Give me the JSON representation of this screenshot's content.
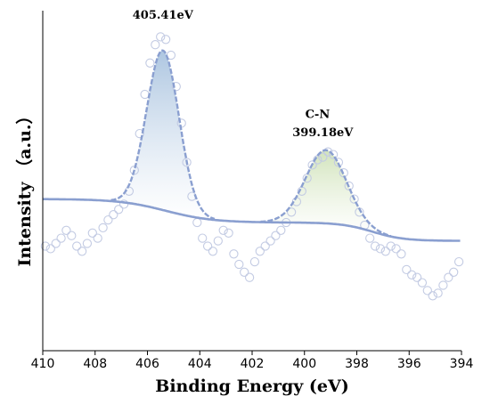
{
  "colors": {
    "raw": "#c3cbe3",
    "fit": "#8a9fd0",
    "peak1_fill": "#a9c3df",
    "peak2_fill": "#cfe2b8",
    "axis": "#000000"
  },
  "chart_data": {
    "type": "line",
    "title": "",
    "xlabel": "Binding Energy (eV)",
    "ylabel": "Intensity （a.u.）",
    "xlim": [
      410,
      394
    ],
    "x_reversed": true,
    "ylim": [
      0,
      100
    ],
    "y_ticks_shown": false,
    "xticks": [
      "410",
      "408",
      "406",
      "404",
      "402",
      "400",
      "398",
      "396",
      "394"
    ],
    "grid": false,
    "legend": "none",
    "peaks": [
      {
        "center": 405.41,
        "amplitude": 61,
        "sigma": 0.62
      },
      {
        "center": 399.18,
        "amplitude": 28,
        "sigma": 0.78,
        "label": "C-N"
      }
    ],
    "background": {
      "high_be_level": 33,
      "low_be_level": 17,
      "step_center": 405.3,
      "step_width": 0.9,
      "low_be_step_center": 397.4,
      "low_be_step_width": 0.6,
      "mid_level": 24
    },
    "raw_data": [
      [
        409.9,
        15
      ],
      [
        409.7,
        14
      ],
      [
        409.5,
        16
      ],
      [
        409.3,
        18
      ],
      [
        409.1,
        21
      ],
      [
        408.9,
        19
      ],
      [
        408.7,
        15
      ],
      [
        408.5,
        13
      ],
      [
        408.3,
        16
      ],
      [
        408.1,
        20
      ],
      [
        407.9,
        18
      ],
      [
        407.7,
        22
      ],
      [
        407.5,
        25
      ],
      [
        407.3,
        27
      ],
      [
        407.1,
        29
      ],
      [
        406.9,
        31
      ],
      [
        406.7,
        36
      ],
      [
        406.5,
        44
      ],
      [
        406.3,
        58
      ],
      [
        406.1,
        73
      ],
      [
        405.9,
        85
      ],
      [
        405.7,
        92
      ],
      [
        405.5,
        95
      ],
      [
        405.3,
        94
      ],
      [
        405.1,
        88
      ],
      [
        404.9,
        76
      ],
      [
        404.7,
        62
      ],
      [
        404.5,
        47
      ],
      [
        404.3,
        34
      ],
      [
        404.1,
        24
      ],
      [
        403.9,
        18
      ],
      [
        403.7,
        15
      ],
      [
        403.5,
        13
      ],
      [
        403.3,
        17
      ],
      [
        403.1,
        21
      ],
      [
        402.9,
        20
      ],
      [
        402.7,
        12
      ],
      [
        402.5,
        8
      ],
      [
        402.3,
        5
      ],
      [
        402.1,
        3
      ],
      [
        401.9,
        9
      ],
      [
        401.7,
        13
      ],
      [
        401.5,
        15
      ],
      [
        401.3,
        17
      ],
      [
        401.1,
        19
      ],
      [
        400.9,
        21
      ],
      [
        400.7,
        24
      ],
      [
        400.5,
        28
      ],
      [
        400.3,
        32
      ],
      [
        400.1,
        36
      ],
      [
        399.9,
        41
      ],
      [
        399.7,
        46
      ],
      [
        399.5,
        48
      ],
      [
        399.3,
        49
      ],
      [
        399.1,
        51
      ],
      [
        398.9,
        50
      ],
      [
        398.7,
        47
      ],
      [
        398.5,
        43
      ],
      [
        398.3,
        38
      ],
      [
        398.1,
        33
      ],
      [
        397.9,
        28
      ],
      [
        397.7,
        23
      ],
      [
        397.5,
        18
      ],
      [
        397.3,
        15
      ],
      [
        397.1,
        14
      ],
      [
        396.9,
        13
      ],
      [
        396.7,
        15
      ],
      [
        396.5,
        14
      ],
      [
        396.3,
        12
      ],
      [
        396.1,
        6
      ],
      [
        395.9,
        4
      ],
      [
        395.7,
        3
      ],
      [
        395.5,
        1
      ],
      [
        395.3,
        -2
      ],
      [
        395.1,
        -4
      ],
      [
        394.9,
        -3
      ],
      [
        394.7,
        0
      ],
      [
        394.5,
        3
      ],
      [
        394.3,
        5
      ],
      [
        394.1,
        9
      ]
    ],
    "annotations": [
      {
        "text": "405.41eV",
        "x": 405.41,
        "y": 102
      },
      {
        "text": "C-N",
        "x": 399.5,
        "y": 64
      },
      {
        "text": "399.18eV",
        "x": 399.3,
        "y": 57
      }
    ]
  }
}
